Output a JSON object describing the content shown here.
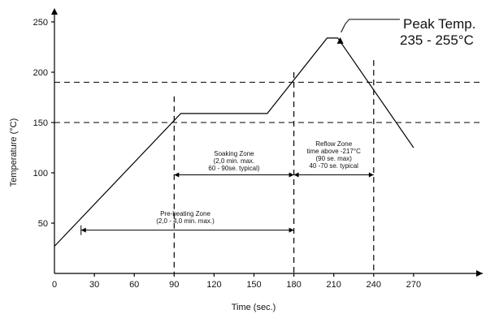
{
  "chart_data": {
    "type": "line",
    "title": "",
    "xlabel": "Time (sec.)",
    "ylabel": "Temperature (°C)",
    "xlim": [
      0,
      300
    ],
    "ylim": [
      0,
      265
    ],
    "x_ticks": [
      0,
      30,
      60,
      90,
      120,
      150,
      180,
      210,
      240,
      270
    ],
    "y_ticks": [
      50,
      100,
      150,
      200,
      250
    ],
    "grid": false,
    "series": [
      {
        "name": "",
        "x": [
          0,
          95,
          160,
          205,
          213,
          270
        ],
        "y": [
          27,
          159,
          159,
          234,
          234,
          125
        ]
      }
    ],
    "reference_lines": {
      "horizontal": [
        150,
        190
      ],
      "vertical": [
        90,
        180,
        240
      ]
    },
    "annotations": {
      "peak": {
        "line1": "Peak Temp.",
        "line2": "235 - 255°C",
        "x": 213,
        "y": 234
      },
      "soaking": {
        "lines": [
          "Soaking Zone",
          "(2,0 min. max.",
          "60 - 90se. typical)"
        ],
        "from": 90,
        "to": 180,
        "y": 98
      },
      "reflow": {
        "lines": [
          "Reflow Zone",
          "time above -217°C",
          "(90 se. max)",
          "40 -70 se. typical"
        ],
        "from": 180,
        "to": 240,
        "y": 98
      },
      "preheating": {
        "lines": [
          "Pre-heating Zone",
          "(2,0 - 4,0 min. max.)"
        ],
        "from": 20,
        "to": 180,
        "y": 43
      }
    }
  }
}
